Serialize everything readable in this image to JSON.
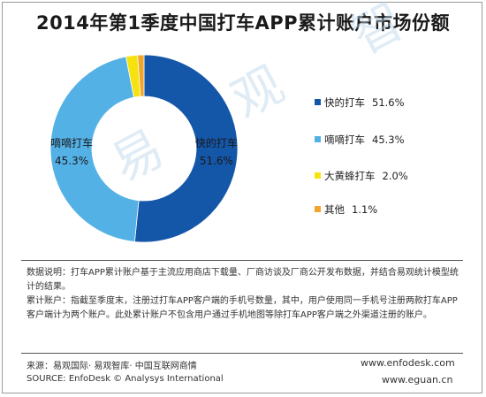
{
  "title": "2014年第1季度中国打车APP累计账户市场份额",
  "watermark": "易 观 智 库",
  "chart_data": {
    "type": "pie",
    "variant": "donut",
    "title": "2014年第1季度中国打车APP累计账户市场份额",
    "categories": [
      "快的打车",
      "嘀嘀打车",
      "大黄蜂打车",
      "其他"
    ],
    "values": [
      51.6,
      45.3,
      2.0,
      1.1
    ],
    "value_labels": [
      "51.6%",
      "45.3%",
      "2.0%",
      "1.1%"
    ],
    "colors": [
      "#1456a8",
      "#54b1e6",
      "#f6e20f",
      "#f1a52c"
    ],
    "legend_position": "right"
  },
  "notes": {
    "line1": "数据说明：打车APP累计账户基于主流应用商店下载量、厂商访谈及厂商公开发布数据，并结合易观统计模型统计的结果。",
    "line2": "累计账户：指截至季度末，注册过打车APP客户端的手机号数量，其中，用户使用同一手机号注册两款打车APP客户端计为两个账户。此处累计账户不包含用户通过手机地图等除打车APP客户端之外渠道注册的账户。"
  },
  "footer": {
    "source_cn": "来源：易观国际· 易观智库· 中国互联网商情",
    "source_en": "SOURCE: EnfoDesk © Analysys International",
    "url1": "www.enfodesk.com",
    "url2": "www.eguan.cn"
  }
}
